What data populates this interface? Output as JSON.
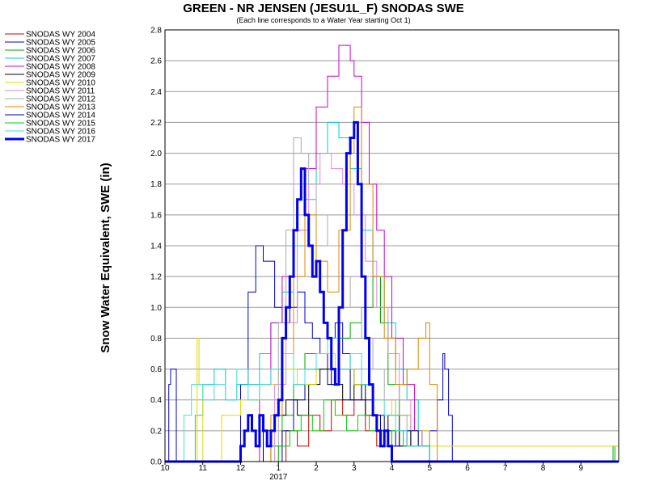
{
  "chart_data": {
    "type": "line",
    "title": "GREEN - NR JENSEN (JESU1L_F) SNODAS SWE",
    "subtitle": "(Each line corresponds to a Water Year starting Oct 1)",
    "ylabel": "Snow Water Equivalent, SWE (in)",
    "xlabel": "",
    "ylim": [
      0,
      2.8
    ],
    "xlim": [
      10,
      22
    ],
    "y_ticks": [
      "0.0",
      "0.2",
      "0.4",
      "0.6",
      "0.8",
      "1.0",
      "1.2",
      "1.4",
      "1.6",
      "1.8",
      "2.0",
      "2.2",
      "2.4",
      "2.6",
      "2.8"
    ],
    "x_ticks": [
      {
        "v": 10,
        "label": "10"
      },
      {
        "v": 11,
        "label": "11"
      },
      {
        "v": 12,
        "label": "12"
      },
      {
        "v": 13,
        "label": "1"
      },
      {
        "v": 14,
        "label": "2"
      },
      {
        "v": 15,
        "label": "3"
      },
      {
        "v": 16,
        "label": "4"
      },
      {
        "v": 17,
        "label": "5"
      },
      {
        "v": 18,
        "label": "6"
      },
      {
        "v": 19,
        "label": "7"
      },
      {
        "v": 20,
        "label": "8"
      },
      {
        "v": 21,
        "label": "9"
      }
    ],
    "x_year_label": "2017",
    "grid": true,
    "legend_position": "left",
    "series": [
      {
        "name": "SNODAS WY 2004",
        "color": "#cc0000",
        "bold": false,
        "x": [
          10,
          12.9,
          13.2,
          13.5,
          13.8,
          14.1,
          14.4,
          14.7,
          15.0,
          15.3,
          15.6,
          16.0,
          22
        ],
        "y": [
          0,
          0,
          0.2,
          0.1,
          0.3,
          0.2,
          0.4,
          0.3,
          0.4,
          0.2,
          0.1,
          0,
          0
        ]
      },
      {
        "name": "SNODAS WY 2005",
        "color": "#0000cc",
        "bold": false,
        "x": [
          10,
          10.1,
          10.15,
          10.3,
          11.8,
          12.0,
          12.2,
          12.4,
          12.6,
          12.9,
          13.1,
          13.3,
          13.5,
          13.7,
          13.9,
          14.1,
          14.3,
          14.5,
          14.7,
          14.9,
          15.0,
          15.2,
          15.5,
          15.7,
          15.9,
          16.2,
          16.5,
          16.8,
          17.0,
          17.2,
          17.35,
          17.4,
          17.5,
          17.6,
          22
        ],
        "y": [
          0,
          0.5,
          0.6,
          0,
          0,
          0.5,
          1.1,
          1.4,
          1.3,
          1.0,
          0.9,
          1.0,
          1.1,
          0.9,
          0.8,
          0.7,
          0.8,
          0.9,
          0.7,
          0.6,
          0.5,
          0.4,
          0.3,
          0.2,
          0.1,
          0.2,
          0.1,
          0.1,
          0.2,
          0.4,
          0.7,
          0.6,
          0.3,
          0,
          0
        ]
      },
      {
        "name": "SNODAS WY 2006",
        "color": "#00aa00",
        "bold": false,
        "x": [
          10,
          12.5,
          12.8,
          13.1,
          13.4,
          13.7,
          14.0,
          14.3,
          14.6,
          14.9,
          15.2,
          15.5,
          15.7,
          15.9,
          16.2,
          16.5,
          16.8,
          17.0,
          21.8,
          21.85,
          21.9,
          22
        ],
        "y": [
          0,
          0,
          0.1,
          0.3,
          0.5,
          0.7,
          0.6,
          0.5,
          0.8,
          0.9,
          1.0,
          1.2,
          0.9,
          0.5,
          0.3,
          0.2,
          0.1,
          0,
          0,
          0.1,
          0,
          0
        ]
      },
      {
        "name": "SNODAS WY 2007",
        "color": "#00cccc",
        "bold": false,
        "x": [
          10,
          10.6,
          10.8,
          11.0,
          11.3,
          11.6,
          11.9,
          12.2,
          12.5,
          12.8,
          13.1,
          13.4,
          13.7,
          14.0,
          14.3,
          14.6,
          14.9,
          15.2,
          15.5,
          15.8,
          16.1,
          16.4,
          16.7,
          17.0,
          22
        ],
        "y": [
          0,
          0,
          0.3,
          0.5,
          0.6,
          0.4,
          0.5,
          0.5,
          0.7,
          0.9,
          1.1,
          1.4,
          1.7,
          2.0,
          2.2,
          2.1,
          1.9,
          1.5,
          1.2,
          0.9,
          0.6,
          0.4,
          0.2,
          0,
          0
        ]
      },
      {
        "name": "SNODAS WY 2008",
        "color": "#cc00cc",
        "bold": false,
        "x": [
          10,
          12.2,
          12.5,
          12.8,
          13.1,
          13.4,
          13.7,
          14.0,
          14.3,
          14.6,
          14.9,
          15.0,
          15.2,
          15.4,
          15.6,
          15.8,
          16.0,
          16.3,
          16.6,
          17.0,
          22
        ],
        "y": [
          0,
          0,
          0.5,
          0.9,
          1.2,
          1.5,
          1.9,
          2.3,
          2.5,
          2.7,
          2.6,
          2.5,
          2.2,
          1.8,
          1.5,
          1.2,
          0.8,
          0.5,
          0.2,
          0,
          0
        ]
      },
      {
        "name": "SNODAS WY 2009",
        "color": "#000000",
        "bold": false,
        "x": [
          10,
          12.3,
          12.6,
          12.9,
          13.2,
          13.5,
          13.8,
          14.1,
          14.4,
          14.7,
          15.0,
          15.3,
          15.6,
          15.9,
          16.2,
          16.5,
          16.8,
          17.0,
          22
        ],
        "y": [
          0,
          0,
          0.2,
          0.3,
          0.4,
          0.3,
          0.5,
          0.6,
          0.5,
          0.4,
          0.5,
          0.3,
          0.2,
          0.3,
          0.1,
          0.2,
          0.1,
          0,
          0
        ]
      },
      {
        "name": "SNODAS WY 2010",
        "color": "#dddd00",
        "bold": false,
        "x": [
          10,
          10.8,
          10.85,
          10.9,
          11.0,
          11.5,
          12.0,
          12.5,
          13.0,
          13.5,
          14.0,
          14.5,
          15.0,
          15.5,
          16.0,
          16.5,
          17.0,
          22
        ],
        "y": [
          0,
          0,
          0.8,
          0.5,
          0,
          0.3,
          0.4,
          0.5,
          0.6,
          0.5,
          0.7,
          0.6,
          0.5,
          0.4,
          0.3,
          0.2,
          0.1,
          0
        ]
      },
      {
        "name": "SNODAS WY 2011",
        "color": "#dd88dd",
        "bold": false,
        "x": [
          10,
          12.6,
          12.9,
          13.2,
          13.5,
          13.8,
          14.1,
          14.4,
          14.7,
          15.0,
          15.3,
          15.6,
          15.9,
          16.2,
          16.5,
          16.8,
          17.0,
          22
        ],
        "y": [
          0,
          0,
          0.5,
          0.9,
          1.5,
          1.8,
          2.0,
          1.9,
          1.8,
          1.6,
          1.3,
          1.0,
          0.7,
          0.4,
          0.2,
          0.1,
          0,
          0
        ]
      },
      {
        "name": "SNODAS WY 2012",
        "color": "#aaaaaa",
        "bold": false,
        "x": [
          10,
          12.8,
          13.0,
          13.2,
          13.4,
          13.6,
          13.8,
          14.0,
          14.3,
          14.6,
          14.9,
          15.2,
          15.5,
          15.8,
          16.1,
          16.4,
          16.7,
          17.0,
          22
        ],
        "y": [
          0,
          0,
          0.9,
          1.5,
          2.1,
          2.0,
          1.8,
          1.6,
          1.4,
          1.2,
          1.0,
          0.8,
          0.6,
          0.4,
          0.3,
          0.2,
          0.1,
          0,
          0
        ]
      },
      {
        "name": "SNODAS WY 2013",
        "color": "#dd8800",
        "bold": false,
        "x": [
          10,
          12.5,
          12.8,
          13.1,
          13.4,
          13.7,
          14.0,
          14.3,
          14.6,
          14.9,
          15.0,
          15.2,
          15.5,
          15.8,
          16.1,
          16.4,
          16.7,
          16.9,
          17.0,
          17.2,
          22
        ],
        "y": [
          0,
          0,
          0.3,
          0.7,
          1.2,
          1.6,
          1.3,
          1.1,
          1.5,
          2.0,
          2.3,
          1.8,
          1.2,
          0.8,
          0.5,
          0.6,
          0.8,
          0.9,
          0.5,
          0,
          0
        ]
      },
      {
        "name": "SNODAS WY 2014",
        "color": "#000088",
        "bold": false,
        "x": [
          10,
          12.8,
          13.1,
          13.4,
          13.7,
          14.0,
          14.3,
          14.6,
          14.9,
          15.2,
          15.5,
          15.8,
          16.1,
          16.4,
          16.7,
          17.0,
          22
        ],
        "y": [
          0,
          0,
          0.2,
          0.4,
          0.6,
          0.7,
          0.5,
          0.6,
          0.4,
          0.5,
          0.3,
          0.2,
          0.1,
          0.2,
          0.1,
          0,
          0
        ]
      },
      {
        "name": "SNODAS WY 2015",
        "color": "#00cc00",
        "bold": false,
        "x": [
          10,
          12.7,
          13.0,
          13.3,
          13.6,
          13.9,
          14.2,
          14.5,
          14.8,
          15.1,
          15.4,
          15.7,
          16.0,
          16.3,
          16.6,
          17.0,
          22
        ],
        "y": [
          0,
          0,
          0.1,
          0.2,
          0.3,
          0.2,
          0.4,
          0.3,
          0.2,
          0.3,
          0.2,
          0.1,
          0.2,
          0.1,
          0.1,
          0,
          0
        ]
      },
      {
        "name": "SNODAS WY 2016",
        "color": "#44dddd",
        "bold": false,
        "x": [
          10,
          10.3,
          10.5,
          10.7,
          11.0,
          11.3,
          11.6,
          11.9,
          12.2,
          12.5,
          12.8,
          13.1,
          13.4,
          13.7,
          14.0,
          14.3,
          14.6,
          14.9,
          15.2,
          15.5,
          15.8,
          16.1,
          16.4,
          16.7,
          17.0,
          22
        ],
        "y": [
          0,
          0,
          0.3,
          0.5,
          0.4,
          0.5,
          0.4,
          0.6,
          0.4,
          0.5,
          0.6,
          0.7,
          0.5,
          0.6,
          0.7,
          0.8,
          0.6,
          0.7,
          0.5,
          0.4,
          0.3,
          0.2,
          0.1,
          0.1,
          0,
          0
        ]
      },
      {
        "name": "SNODAS WY 2017",
        "color": "#0000ee",
        "bold": true,
        "x": [
          10,
          11.8,
          12.0,
          12.1,
          12.2,
          12.3,
          12.4,
          12.5,
          12.6,
          12.7,
          12.8,
          12.9,
          13.0,
          13.1,
          13.2,
          13.3,
          13.4,
          13.5,
          13.6,
          13.7,
          13.8,
          13.9,
          14.0,
          14.1,
          14.2,
          14.3,
          14.4,
          14.5,
          14.6,
          14.7,
          14.8,
          14.9,
          15.0,
          15.05,
          15.1,
          15.2,
          15.3,
          15.4,
          15.5,
          15.6,
          15.7,
          15.8,
          15.9,
          16.0,
          16.2,
          22
        ],
        "y": [
          0,
          0,
          0.1,
          0.2,
          0.3,
          0.2,
          0.1,
          0.3,
          0.2,
          0.1,
          0.2,
          0.3,
          0.4,
          0.8,
          1.0,
          1.2,
          1.5,
          1.7,
          1.9,
          1.6,
          1.4,
          1.2,
          1.3,
          1.1,
          0.9,
          0.8,
          0.6,
          0.5,
          1.0,
          1.5,
          2.0,
          2.1,
          2.2,
          2.2,
          1.8,
          1.2,
          0.8,
          0.5,
          0.3,
          0.2,
          0.1,
          0.2,
          0.1,
          0,
          0,
          0
        ]
      }
    ]
  }
}
